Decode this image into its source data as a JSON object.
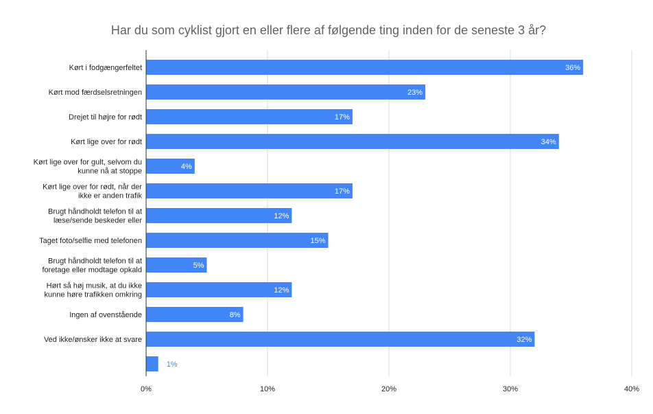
{
  "chart_data": {
    "type": "bar",
    "orientation": "horizontal",
    "title": "Har du som cyklist gjort en eller flere af følgende ting inden for de seneste 3 år?",
    "categories": [
      [
        "Kørt i fodgængerfeltet"
      ],
      [
        "Kørt mod færdselsretningen"
      ],
      [
        "Drejet til højre for rødt"
      ],
      [
        "Kørt lige over for rødt"
      ],
      [
        "Kørt lige over for gult, selvom du",
        "kunne nå at stoppe"
      ],
      [
        "Kørt lige over for rødt, når der",
        "ikke er anden trafik"
      ],
      [
        "Brugt håndholdt telefon til at",
        "læse/sende beskeder eller"
      ],
      [
        "Taget foto/selfie med telefonen"
      ],
      [
        "Brugt håndholdt telefon til at",
        "foretage eller modtage opkald"
      ],
      [
        "Hørt så høj musik, at du ikke",
        "kunne høre trafikken omkring"
      ],
      [
        "Ingen af ovenstående"
      ],
      [
        "Ved ikke/ønsker ikke at svare"
      ],
      [
        ""
      ]
    ],
    "values": [
      36,
      23,
      17,
      34,
      4,
      17,
      12,
      15,
      5,
      12,
      8,
      32,
      1
    ],
    "data_labels": [
      "36%",
      "23%",
      "17%",
      "34%",
      "4%",
      "17%",
      "12%",
      "15%",
      "5%",
      "12%",
      "8%",
      "32%",
      "1%"
    ],
    "xlim": [
      0,
      40
    ],
    "x_ticks": [
      0,
      10,
      20,
      30,
      40
    ],
    "x_tick_labels": [
      "0%",
      "10%",
      "20%",
      "30%",
      "40%"
    ],
    "grid": true,
    "legend": "none",
    "bar_color": "#4285f4",
    "grid_color": "#d9d9d9"
  }
}
